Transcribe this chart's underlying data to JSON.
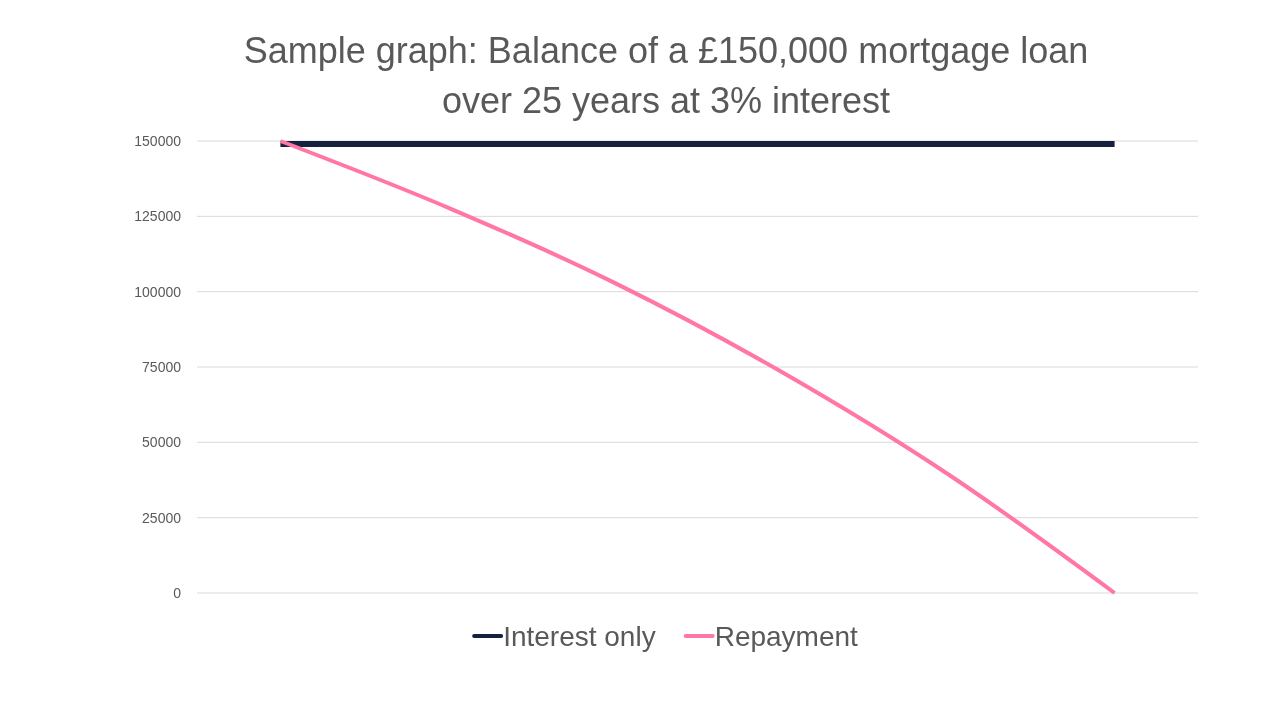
{
  "chart_data": {
    "type": "line",
    "title": "Sample graph: Balance of a £150,000 mortgage loan over 25 years at 3% interest",
    "categories": [
      null,
      null,
      null,
      null,
      null,
      null
    ],
    "series": [
      {
        "name": "Interest only",
        "color": "#14223f",
        "values": [
          149000,
          149000,
          149000,
          149000,
          149000,
          149000
        ]
      },
      {
        "name": "Repayment",
        "color": "#ff77a2",
        "values": [
          150000,
          128000,
          103000,
          73500,
          39500,
          0
        ]
      }
    ],
    "ylim": [
      0,
      150000
    ],
    "yticks": [
      0,
      25000,
      50000,
      75000,
      100000,
      125000,
      150000
    ],
    "grid": "y",
    "legend": "bottom",
    "tick_labels": "y"
  }
}
